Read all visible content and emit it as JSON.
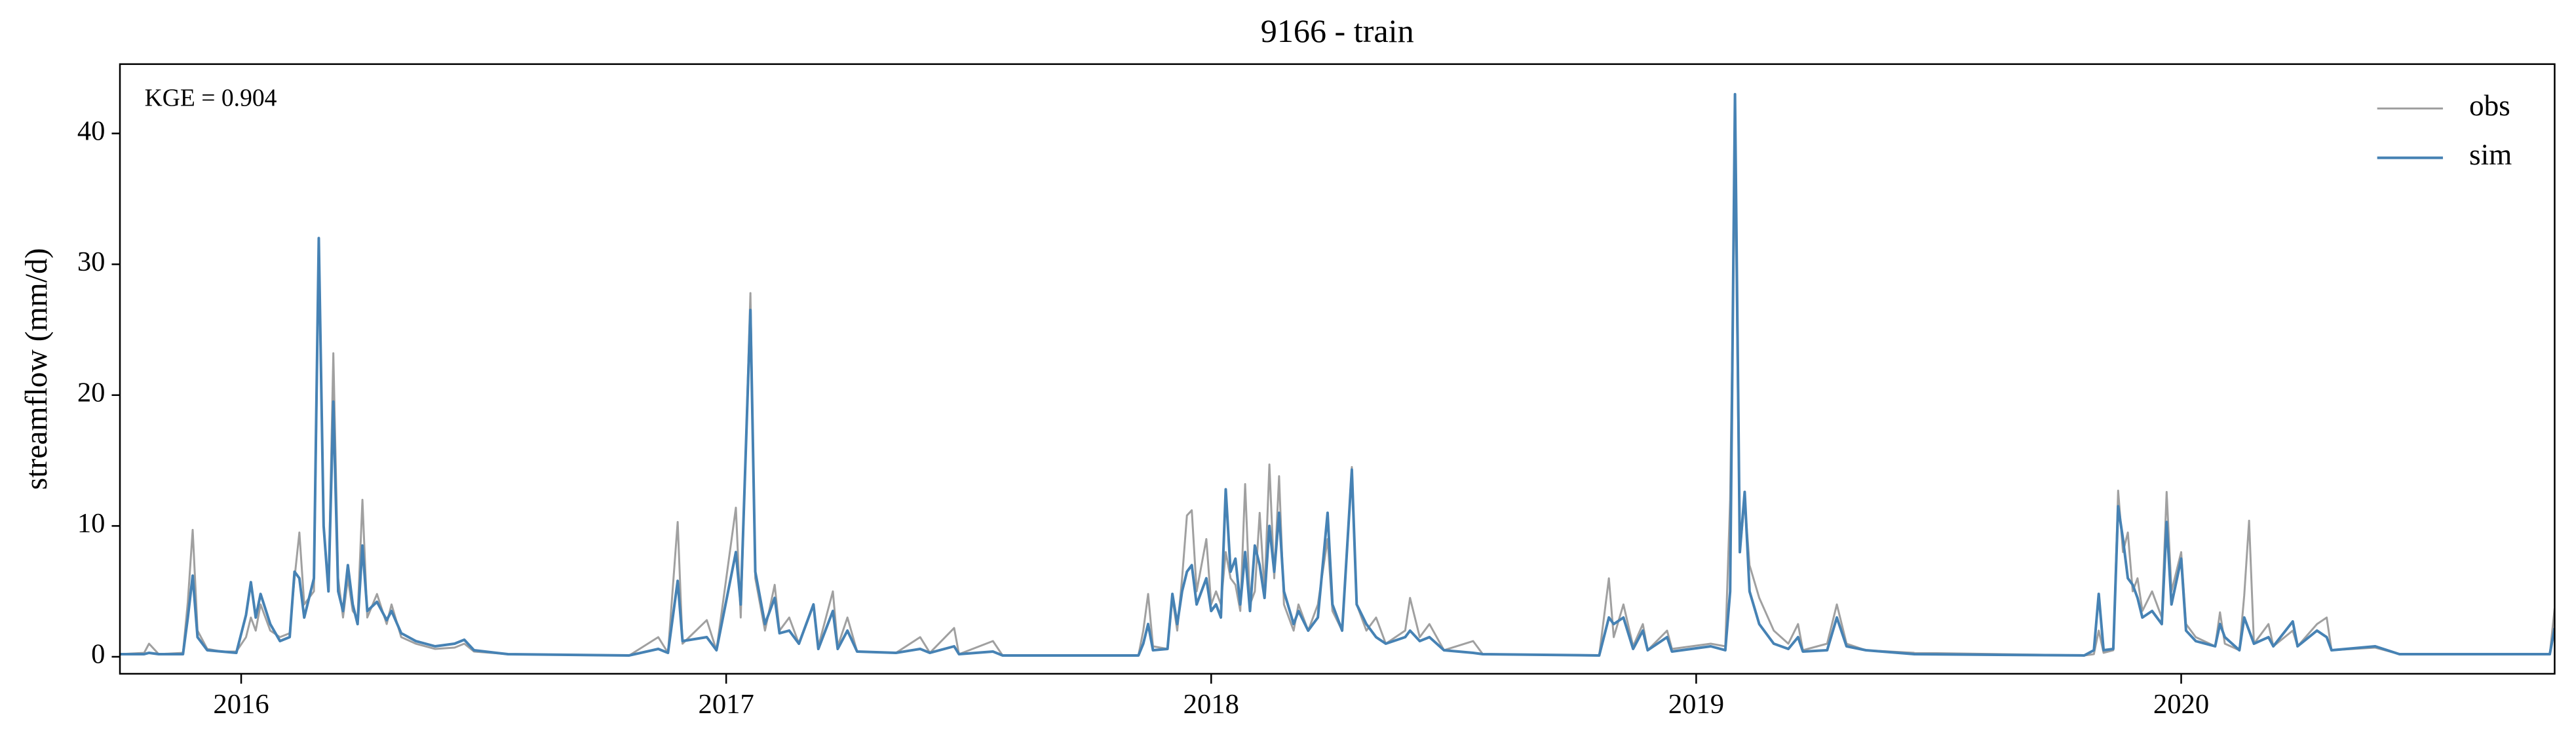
{
  "chart_data": {
    "type": "line",
    "title": "9166 - train",
    "ylabel": "streamflow (mm/d)",
    "annotation": "KGE = 0.904",
    "legend": "upper right",
    "grid": false,
    "xlim": [
      2015.75,
      2020.77
    ],
    "xticks": [
      2016,
      2017,
      2018,
      2019,
      2020
    ],
    "ylim": [
      -1.3,
      45.3
    ],
    "yticks": [
      0,
      10,
      20,
      30,
      40
    ],
    "x": [
      2015.75,
      2015.8,
      2015.81,
      2015.83,
      2015.88,
      2015.89,
      2015.9,
      2015.91,
      2015.93,
      2015.96,
      2015.99,
      2016.01,
      2016.02,
      2016.03,
      2016.04,
      2016.06,
      2016.08,
      2016.1,
      2016.11,
      2016.12,
      2016.13,
      2016.15,
      2016.16,
      2016.17,
      2016.18,
      2016.19,
      2016.2,
      2016.21,
      2016.22,
      2016.23,
      2016.24,
      2016.25,
      2016.26,
      2016.28,
      2016.3,
      2016.31,
      2016.33,
      2016.36,
      2016.4,
      2016.44,
      2016.46,
      2016.48,
      2016.55,
      2016.8,
      2016.86,
      2016.88,
      2016.9,
      2016.91,
      2016.96,
      2016.98,
      2017.02,
      2017.03,
      2017.05,
      2017.06,
      2017.08,
      2017.1,
      2017.11,
      2017.13,
      2017.15,
      2017.18,
      2017.19,
      2017.22,
      2017.23,
      2017.25,
      2017.27,
      2017.35,
      2017.4,
      2017.42,
      2017.47,
      2017.48,
      2017.55,
      2017.57,
      2017.85,
      2017.86,
      2017.87,
      2017.88,
      2017.91,
      2017.92,
      2017.93,
      2017.94,
      2017.95,
      2017.96,
      2017.97,
      2017.99,
      2018.0,
      2018.01,
      2018.02,
      2018.03,
      2018.04,
      2018.05,
      2018.06,
      2018.07,
      2018.08,
      2018.09,
      2018.1,
      2018.11,
      2018.12,
      2018.13,
      2018.14,
      2018.15,
      2018.17,
      2018.18,
      2018.2,
      2018.22,
      2018.24,
      2018.25,
      2018.27,
      2018.29,
      2018.3,
      2018.32,
      2018.34,
      2018.36,
      2018.4,
      2018.41,
      2018.43,
      2018.45,
      2018.48,
      2018.54,
      2018.56,
      2018.8,
      2018.82,
      2018.83,
      2018.85,
      2018.87,
      2018.89,
      2018.9,
      2018.94,
      2018.95,
      2019.03,
      2019.06,
      2019.07,
      2019.08,
      2019.09,
      2019.1,
      2019.11,
      2019.13,
      2019.16,
      2019.19,
      2019.21,
      2019.22,
      2019.27,
      2019.29,
      2019.31,
      2019.35,
      2019.45,
      2019.8,
      2019.82,
      2019.83,
      2019.84,
      2019.86,
      2019.87,
      2019.88,
      2019.89,
      2019.9,
      2019.91,
      2019.92,
      2019.94,
      2019.96,
      2019.97,
      2019.98,
      2020.0,
      2020.01,
      2020.03,
      2020.07,
      2020.08,
      2020.09,
      2020.12,
      2020.13,
      2020.14,
      2020.15,
      2020.18,
      2020.19,
      2020.23,
      2020.24,
      2020.28,
      2020.3,
      2020.31,
      2020.4,
      2020.45,
      2020.76,
      2020.77
    ],
    "series": [
      {
        "name": "obs",
        "color": "#a0a0a0",
        "width": 1.2,
        "values": [
          0.2,
          0.3,
          1.0,
          0.2,
          0.3,
          4.2,
          9.7,
          2.0,
          0.6,
          0.4,
          0.4,
          1.5,
          3.0,
          2.0,
          4.0,
          2.0,
          1.5,
          1.8,
          6.0,
          9.5,
          4.0,
          5.0,
          31.0,
          10.0,
          5.0,
          23.2,
          6.0,
          3.0,
          6.0,
          3.5,
          3.0,
          12.0,
          3.0,
          4.8,
          2.5,
          4.0,
          1.5,
          1.0,
          0.6,
          0.7,
          1.0,
          0.4,
          0.2,
          0.1,
          1.5,
          0.3,
          10.3,
          1.0,
          2.8,
          0.5,
          11.4,
          3.0,
          27.8,
          6.0,
          2.0,
          5.5,
          2.0,
          3.0,
          1.0,
          4.0,
          0.8,
          5.0,
          0.8,
          3.0,
          0.4,
          0.3,
          1.5,
          0.3,
          2.2,
          0.2,
          1.2,
          0.1,
          0.1,
          2.0,
          4.8,
          0.8,
          0.6,
          4.5,
          2.0,
          6.0,
          10.8,
          11.2,
          5.0,
          9.0,
          4.0,
          5.0,
          4.0,
          8.0,
          6.0,
          5.5,
          3.5,
          13.2,
          4.0,
          5.0,
          11.0,
          5.0,
          14.7,
          6.0,
          13.8,
          4.0,
          2.0,
          4.0,
          2.0,
          4.0,
          9.0,
          3.5,
          2.0,
          14.5,
          4.0,
          2.0,
          3.0,
          1.0,
          2.0,
          4.5,
          1.5,
          2.5,
          0.5,
          1.2,
          0.2,
          0.1,
          6.0,
          1.5,
          4.0,
          0.8,
          2.5,
          0.5,
          2.0,
          0.6,
          1.0,
          0.8,
          12.0,
          38.0,
          8.0,
          12.0,
          7.0,
          4.5,
          2.0,
          1.0,
          2.5,
          0.5,
          1.0,
          4.0,
          1.0,
          0.5,
          0.3,
          0.1,
          0.2,
          2.0,
          0.3,
          0.5,
          12.7,
          8.0,
          9.5,
          5.0,
          6.0,
          3.5,
          5.0,
          3.0,
          12.6,
          5.0,
          8.0,
          2.5,
          1.5,
          0.8,
          3.4,
          1.0,
          0.5,
          4.7,
          10.4,
          1.0,
          2.5,
          0.8,
          2.0,
          0.8,
          2.5,
          3.0,
          0.5,
          0.7,
          0.2,
          0.2,
          3.7
        ]
      },
      {
        "name": "sim",
        "color": "#4682b4",
        "width": 1.6,
        "values": [
          0.2,
          0.2,
          0.3,
          0.2,
          0.2,
          3.0,
          6.2,
          1.5,
          0.5,
          0.4,
          0.3,
          3.2,
          5.7,
          3.0,
          4.8,
          2.5,
          1.2,
          1.5,
          6.5,
          6.0,
          3.0,
          6.0,
          32.0,
          10.0,
          5.0,
          19.5,
          5.0,
          3.5,
          7.0,
          4.0,
          2.5,
          8.5,
          3.5,
          4.2,
          2.8,
          3.5,
          1.8,
          1.2,
          0.8,
          1.0,
          1.3,
          0.5,
          0.2,
          0.1,
          0.6,
          0.3,
          5.8,
          1.2,
          1.5,
          0.5,
          8.0,
          4.0,
          26.5,
          6.5,
          2.5,
          4.5,
          1.8,
          2.0,
          1.0,
          4.0,
          0.6,
          3.5,
          0.6,
          2.0,
          0.4,
          0.3,
          0.6,
          0.3,
          0.8,
          0.2,
          0.4,
          0.1,
          0.1,
          1.0,
          2.5,
          0.5,
          0.6,
          4.8,
          2.5,
          5.0,
          6.5,
          7.0,
          4.0,
          6.0,
          3.5,
          4.0,
          3.0,
          12.8,
          6.5,
          7.5,
          4.0,
          8.0,
          3.5,
          8.5,
          7.0,
          4.5,
          10.0,
          6.5,
          11.0,
          5.0,
          2.5,
          3.5,
          2.0,
          3.0,
          11.0,
          4.0,
          2.0,
          14.3,
          4.0,
          2.5,
          1.5,
          1.0,
          1.5,
          2.0,
          1.2,
          1.5,
          0.5,
          0.3,
          0.2,
          0.1,
          3.0,
          2.5,
          3.0,
          0.6,
          2.0,
          0.5,
          1.5,
          0.4,
          0.8,
          0.5,
          5.0,
          43.0,
          8.0,
          12.6,
          5.0,
          2.5,
          1.0,
          0.6,
          1.5,
          0.4,
          0.5,
          3.0,
          0.8,
          0.5,
          0.2,
          0.1,
          0.5,
          4.8,
          0.5,
          0.6,
          11.5,
          9.0,
          6.0,
          5.5,
          4.5,
          3.0,
          3.5,
          2.5,
          10.3,
          4.0,
          7.5,
          2.0,
          1.2,
          0.8,
          2.5,
          1.5,
          0.5,
          3.0,
          2.0,
          1.0,
          1.5,
          0.8,
          2.7,
          0.8,
          2.0,
          1.5,
          0.5,
          0.8,
          0.2,
          0.2,
          2.2
        ]
      }
    ]
  }
}
